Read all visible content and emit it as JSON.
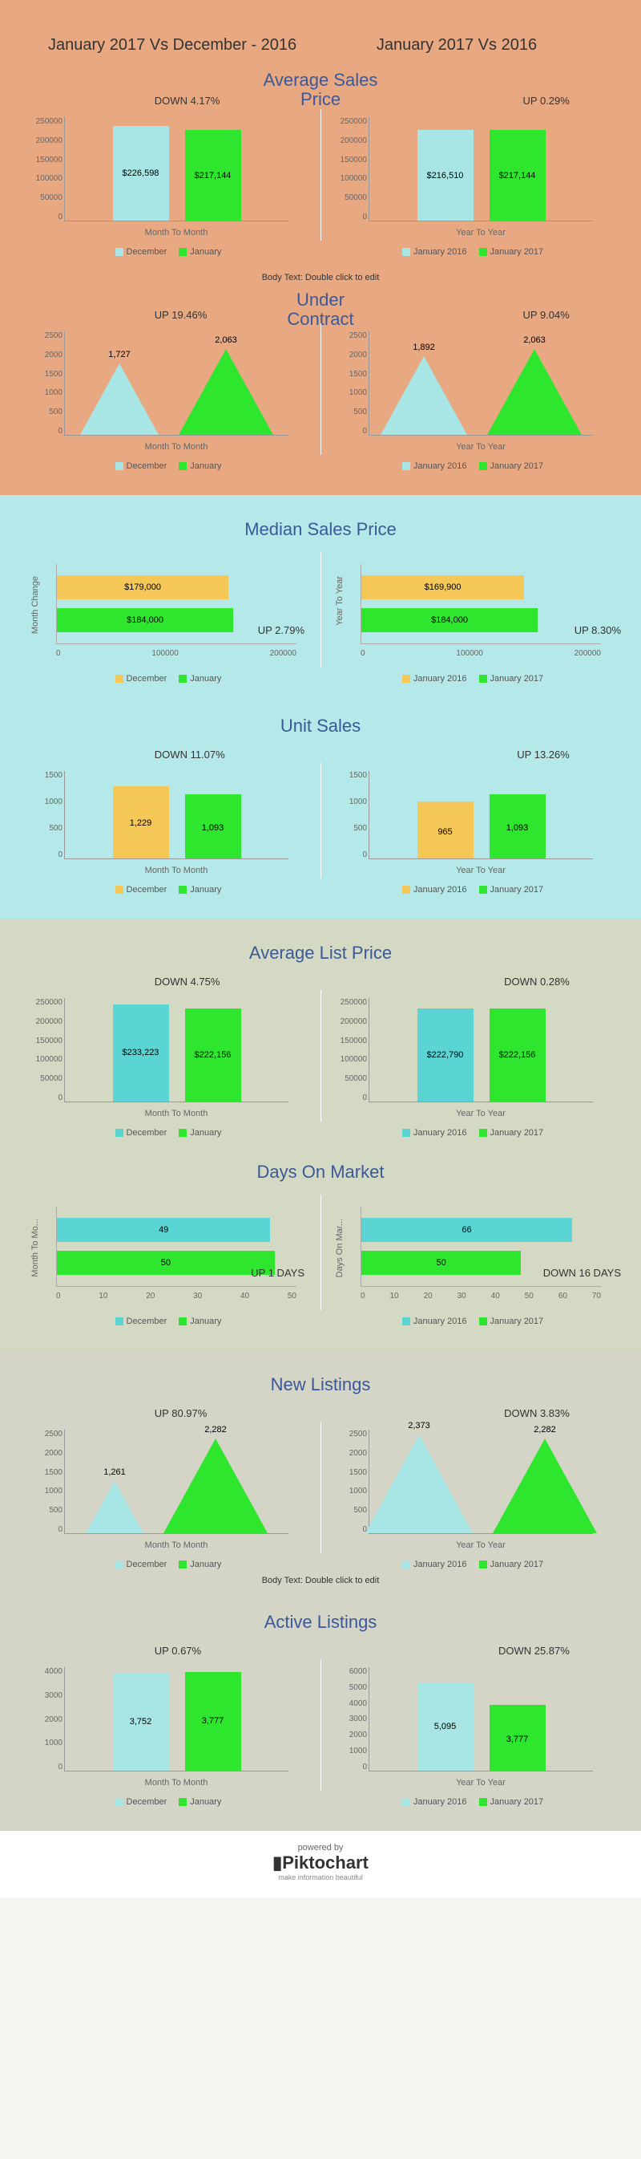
{
  "colors": {
    "section1_bg": "#e8a882",
    "section2_bg": "#b5e8e8",
    "section3_bg": "#d4d9c4",
    "section4_bg": "#d4d4c7",
    "cyan": "#a8e6e6",
    "green": "#2ee62e",
    "orange": "#f5c757",
    "title_blue": "#3b5998"
  },
  "header": {
    "left_title": "January 2017 Vs December - 2016",
    "right_title": "January 2017 Vs 2016"
  },
  "avg_sales": {
    "title": "Average Sales Price",
    "left": {
      "change": "DOWN 4.17%",
      "xlabel": "Month To Month",
      "yticks": [
        "0",
        "50000",
        "100000",
        "150000",
        "200000",
        "250000"
      ],
      "ymax": 250000,
      "bars": [
        {
          "label": "$226,598",
          "value": 226598,
          "color": "#a8e6e6"
        },
        {
          "label": "$217,144",
          "value": 217144,
          "color": "#2ee62e"
        }
      ],
      "legend": [
        "December",
        "January"
      ]
    },
    "right": {
      "change": "UP 0.29%",
      "xlabel": "Year To Year",
      "yticks": [
        "0",
        "50000",
        "100000",
        "150000",
        "200000",
        "250000"
      ],
      "ymax": 250000,
      "bars": [
        {
          "label": "$216,510",
          "value": 216510,
          "color": "#a8e6e6"
        },
        {
          "label": "$217,144",
          "value": 217144,
          "color": "#2ee62e"
        }
      ],
      "legend": [
        "January 2016",
        "January 2017"
      ]
    }
  },
  "under_contract": {
    "title": "Under Contract",
    "body_text": "Body Text: Double click to edit",
    "left": {
      "change": "UP 19.46%",
      "xlabel": "Month To Month",
      "yticks": [
        "0",
        "500",
        "1000",
        "1500",
        "2000",
        "2500"
      ],
      "ymax": 2500,
      "bars": [
        {
          "label": "1,727",
          "value": 1727,
          "color": "#a8e6e6"
        },
        {
          "label": "2,063",
          "value": 2063,
          "color": "#2ee62e"
        }
      ],
      "legend": [
        "December",
        "January"
      ]
    },
    "right": {
      "change": "UP 9.04%",
      "xlabel": "Year To Year",
      "yticks": [
        "0",
        "500",
        "1000",
        "1500",
        "2000",
        "2500"
      ],
      "ymax": 2500,
      "bars": [
        {
          "label": "1,892",
          "value": 1892,
          "color": "#a8e6e6"
        },
        {
          "label": "2,063",
          "value": 2063,
          "color": "#2ee62e"
        }
      ],
      "legend": [
        "January 2016",
        "January 2017"
      ]
    }
  },
  "median_sales": {
    "title": "Median Sales Price",
    "left": {
      "change": "UP  2.79%",
      "vlabel": "Month Change",
      "xticks": [
        "0",
        "100000",
        "200000"
      ],
      "xmax": 250000,
      "bars": [
        {
          "label": "$179,000",
          "value": 179000,
          "color": "#f5c757"
        },
        {
          "label": "$184,000",
          "value": 184000,
          "color": "#2ee62e"
        }
      ],
      "legend": [
        "December",
        "January"
      ]
    },
    "right": {
      "change": "UP 8.30%",
      "vlabel": "Year To Year",
      "xticks": [
        "0",
        "100000",
        "200000"
      ],
      "xmax": 250000,
      "bars": [
        {
          "label": "$169,900",
          "value": 169900,
          "color": "#f5c757"
        },
        {
          "label": "$184,000",
          "value": 184000,
          "color": "#2ee62e"
        }
      ],
      "legend": [
        "January 2016",
        "January 2017"
      ]
    }
  },
  "unit_sales": {
    "title": "Unit Sales",
    "left": {
      "change": "DOWN 11.07%",
      "xlabel": "Month To Month",
      "yticks": [
        "0",
        "500",
        "1000",
        "1500"
      ],
      "ymax": 1500,
      "bars": [
        {
          "label": "1,229",
          "value": 1229,
          "color": "#f5c757"
        },
        {
          "label": "1,093",
          "value": 1093,
          "color": "#2ee62e"
        }
      ],
      "legend": [
        "December",
        "January"
      ]
    },
    "right": {
      "change": "UP 13.26%",
      "xlabel": "Year To Year",
      "yticks": [
        "0",
        "500",
        "1000",
        "1500"
      ],
      "ymax": 1500,
      "bars": [
        {
          "label": "965",
          "value": 965,
          "color": "#f5c757"
        },
        {
          "label": "1,093",
          "value": 1093,
          "color": "#2ee62e"
        }
      ],
      "legend": [
        "January 2016",
        "January 2017"
      ]
    }
  },
  "avg_list": {
    "title": "Average List Price",
    "left": {
      "change": "DOWN 4.75%",
      "xlabel": "Month To Month",
      "yticks": [
        "0",
        "50000",
        "100000",
        "150000",
        "200000",
        "250000"
      ],
      "ymax": 250000,
      "bars": [
        {
          "label": "$233,223",
          "value": 233223,
          "color": "#5bd4d4"
        },
        {
          "label": "$222,156",
          "value": 222156,
          "color": "#2ee62e"
        }
      ],
      "legend": [
        "December",
        "January"
      ]
    },
    "right": {
      "change": "DOWN 0.28%",
      "xlabel": "Year To Year",
      "yticks": [
        "0",
        "50000",
        "100000",
        "150000",
        "200000",
        "250000"
      ],
      "ymax": 250000,
      "bars": [
        {
          "label": "$222,790",
          "value": 222790,
          "color": "#5bd4d4"
        },
        {
          "label": "$222,156",
          "value": 222156,
          "color": "#2ee62e"
        }
      ],
      "legend": [
        "January 2016",
        "January 2017"
      ]
    }
  },
  "days_on_market": {
    "title": "Days On Market",
    "left": {
      "change": "UP  1 DAYS",
      "vlabel": "Month To Mo...",
      "xticks": [
        "0",
        "10",
        "20",
        "30",
        "40",
        "50"
      ],
      "xmax": 55,
      "bars": [
        {
          "label": "49",
          "value": 49,
          "color": "#5bd4d4"
        },
        {
          "label": "50",
          "value": 50,
          "color": "#2ee62e"
        }
      ],
      "legend": [
        "December",
        "January"
      ]
    },
    "right": {
      "change": "DOWN 16 DAYS",
      "vlabel": "Days On Mar...",
      "xticks": [
        "0",
        "10",
        "20",
        "30",
        "40",
        "50",
        "60",
        "70"
      ],
      "xmax": 75,
      "bars": [
        {
          "label": "66",
          "value": 66,
          "color": "#5bd4d4"
        },
        {
          "label": "50",
          "value": 50,
          "color": "#2ee62e"
        }
      ],
      "legend": [
        "January 2016",
        "January 2017"
      ]
    }
  },
  "new_listings": {
    "title": "New Listings",
    "body_text": "Body Text: Double click to edit",
    "left": {
      "change": "UP 80.97%",
      "xlabel": "Month To Month",
      "yticks": [
        "0",
        "500",
        "1000",
        "1500",
        "2000",
        "2500"
      ],
      "ymax": 2500,
      "bars": [
        {
          "label": "1,261",
          "value": 1261,
          "color": "#a8e6e6"
        },
        {
          "label": "2,282",
          "value": 2282,
          "color": "#2ee62e"
        }
      ],
      "legend": [
        "December",
        "January"
      ]
    },
    "right": {
      "change": "DOWN 3.83%",
      "xlabel": "Year To Year",
      "yticks": [
        "0",
        "500",
        "1000",
        "1500",
        "2000",
        "2500"
      ],
      "ymax": 2500,
      "bars": [
        {
          "label": "2,373",
          "value": 2373,
          "color": "#a8e6e6"
        },
        {
          "label": "2,282",
          "value": 2282,
          "color": "#2ee62e"
        }
      ],
      "legend": [
        "January 2016",
        "January 2017"
      ]
    }
  },
  "active_listings": {
    "title": "Active Listings",
    "left": {
      "change": "UP 0.67%",
      "xlabel": "Month To Month",
      "yticks": [
        "0",
        "1000",
        "2000",
        "3000",
        "4000"
      ],
      "ymax": 4000,
      "bars": [
        {
          "label": "3,752",
          "value": 3752,
          "color": "#a8e6e6"
        },
        {
          "label": "3,777",
          "value": 3777,
          "color": "#2ee62e"
        }
      ],
      "legend": [
        "December",
        "January"
      ]
    },
    "right": {
      "change": "DOWN 25.87%",
      "xlabel": "Year To Year",
      "yticks": [
        "0",
        "1000",
        "2000",
        "3000",
        "4000",
        "5000",
        "6000"
      ],
      "ymax": 6000,
      "bars": [
        {
          "label": "5,095",
          "value": 5095,
          "color": "#a8e6e6"
        },
        {
          "label": "3,777",
          "value": 3777,
          "color": "#2ee62e"
        }
      ],
      "legend": [
        "January 2016",
        "January 2017"
      ]
    }
  },
  "footer": {
    "powered": "powered by",
    "logo": "Piktochart",
    "tag": "make information beautiful"
  }
}
